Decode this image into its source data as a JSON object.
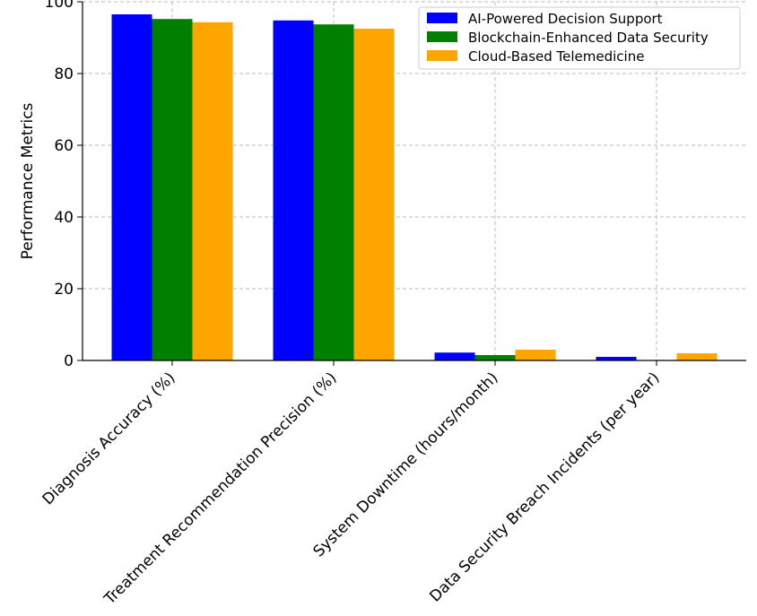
{
  "chart_data": {
    "type": "bar",
    "title": "",
    "xlabel": "",
    "ylabel": "Performance Metrics",
    "ylim": [
      0,
      100
    ],
    "yticks": [
      0,
      20,
      40,
      60,
      80,
      100
    ],
    "grid": true,
    "legend_position": "top-right",
    "categories": [
      "Diagnosis Accuracy (%)",
      "Treatment Recommendation Precision (%)",
      "System Downtime (hours/month)",
      "Data Security Breach Incidents (per year)"
    ],
    "series": [
      {
        "name": "AI-Powered Decision Support",
        "color": "#0000ff",
        "values": [
          96.5,
          94.8,
          2.2,
          1.0
        ]
      },
      {
        "name": "Blockchain-Enhanced Data Security",
        "color": "#008000",
        "values": [
          95.2,
          93.7,
          1.5,
          0.0
        ]
      },
      {
        "name": "Cloud-Based Telemedicine",
        "color": "#ffa500",
        "values": [
          94.3,
          92.5,
          3.0,
          2.0
        ]
      }
    ]
  }
}
